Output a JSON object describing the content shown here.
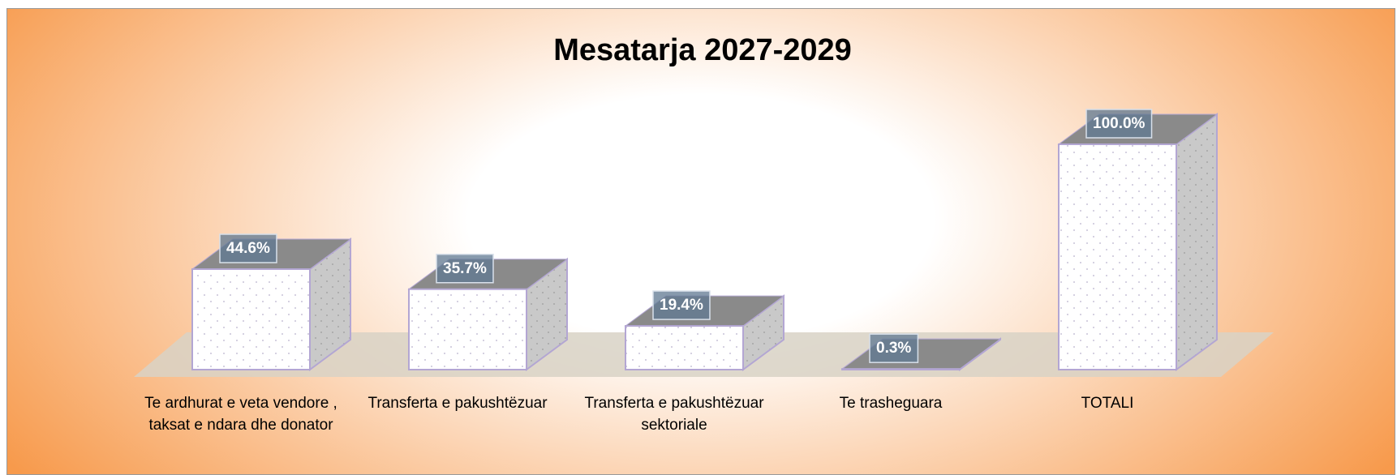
{
  "chart_data": {
    "type": "bar3d",
    "title": "Mesatarja 2027-2029",
    "categories": [
      "Te ardhurat  e veta vendore , taksat e ndara dhe donator",
      "Transferta e pakushtëzuar",
      "Transferta e pakushtëzuar sektoriale",
      "Te trasheguara",
      "TOTALI"
    ],
    "values": [
      44.6,
      35.7,
      19.4,
      0.3,
      100.0
    ],
    "value_labels": [
      "44.6%",
      "35.7%",
      "19.4%",
      "0.3%",
      "100.0%"
    ],
    "color": "#ffffff"
  }
}
